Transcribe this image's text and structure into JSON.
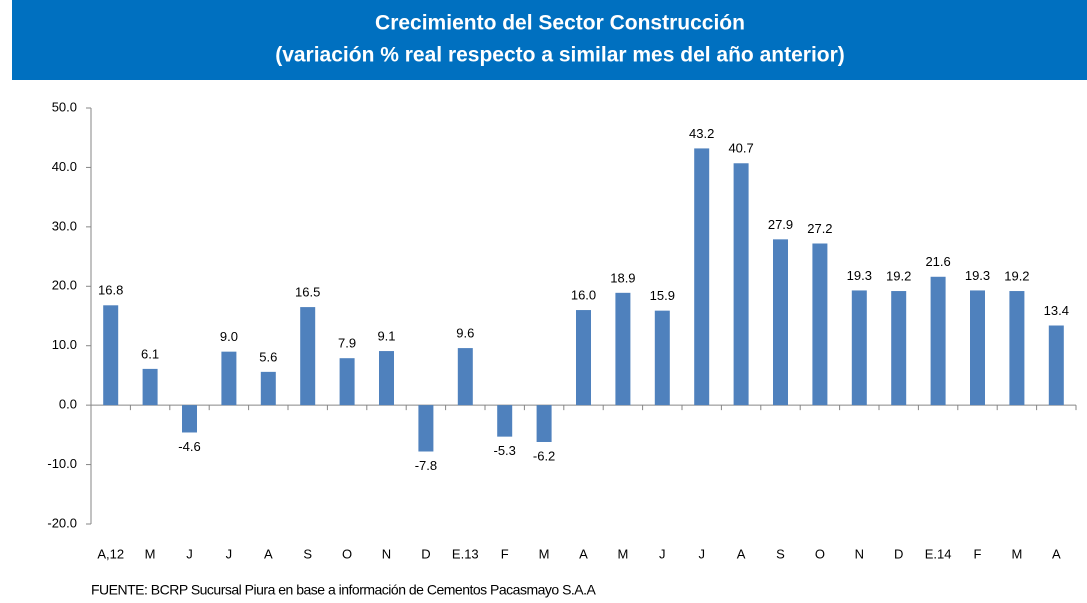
{
  "chart_data": {
    "type": "bar",
    "title": "Crecimiento del Sector Construcción",
    "subtitle": "(variación % real respecto a similar mes del año anterior)",
    "categories": [
      "A,12",
      "M",
      "J",
      "J",
      "A",
      "S",
      "O",
      "N",
      "D",
      "E.13",
      "F",
      "M",
      "A",
      "M",
      "J",
      "J",
      "A",
      "S",
      "O",
      "N",
      "D",
      "E.14",
      "F",
      "M",
      "A"
    ],
    "values": [
      16.8,
      6.1,
      -4.6,
      9.0,
      5.6,
      16.5,
      7.9,
      9.1,
      -7.8,
      9.6,
      -5.3,
      -6.2,
      16.0,
      18.9,
      15.9,
      43.2,
      40.7,
      27.9,
      27.2,
      19.3,
      19.2,
      21.6,
      19.3,
      19.2,
      13.4
    ],
    "value_labels": [
      "16.8",
      "6.1",
      "-4.6",
      "9.0",
      "5.6",
      "16.5",
      "7.9",
      "9.1",
      "-7.8",
      "9.6",
      "-5.3",
      "-6.2",
      "16.0",
      "18.9",
      "15.9",
      "43.2",
      "40.7",
      "27.9",
      "27.2",
      "19.3",
      "19.2",
      "21.6",
      "19.3",
      "19.2",
      "13.4"
    ],
    "color": "#4f81bd",
    "ylim": [
      -20,
      50
    ],
    "yticks": [
      {
        "value": -20,
        "label": "-20.0"
      },
      {
        "value": -10,
        "label": "-10.0"
      },
      {
        "value": 0,
        "label": "0.0"
      },
      {
        "value": 10,
        "label": "10.0"
      },
      {
        "value": 20,
        "label": "20.0"
      },
      {
        "value": 30,
        "label": "30.0"
      },
      {
        "value": 40,
        "label": "40.0"
      },
      {
        "value": 50,
        "label": "50.0"
      }
    ],
    "grid": false,
    "source": "FUENTE: BCRP Sucursal Piura en base a información de Cementos Pacasmayo S.A.A"
  }
}
